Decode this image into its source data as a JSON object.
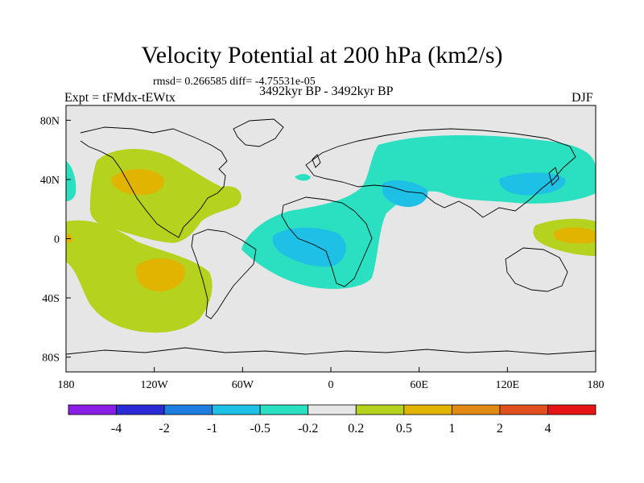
{
  "title": "Velocity Potential at 200 hPa (km2/s)",
  "stats": "rmsd= 0.266585 diff= -4.75531e-05",
  "expt": "Expt = tFMdx-tEWtx",
  "period": "3492kyr BP - 3492kyr BP",
  "season": "DJF",
  "map": {
    "background": "#e6e6e6",
    "lat_ticks": [
      {
        "label": "80N",
        "lat": 80
      },
      {
        "label": "40N",
        "lat": 40
      },
      {
        "label": "0",
        "lat": 0
      },
      {
        "label": "40S",
        "lat": -40
      },
      {
        "label": "80S",
        "lat": -80
      }
    ],
    "lon_ticks": [
      {
        "label": "180",
        "lon": -180
      },
      {
        "label": "120W",
        "lon": -120
      },
      {
        "label": "60W",
        "lon": -60
      },
      {
        "label": "0",
        "lon": 0
      },
      {
        "label": "60E",
        "lon": 60
      },
      {
        "label": "120E",
        "lon": 120
      },
      {
        "label": "180",
        "lon": 180
      }
    ]
  },
  "colorbar": {
    "colors": [
      "#8a1ee6",
      "#2b2bd6",
      "#1e7de0",
      "#1ec0e6",
      "#2be0c0",
      "#e6e6e6",
      "#b4d21e",
      "#e0b400",
      "#e08a14",
      "#e0501e",
      "#e61414"
    ],
    "labels": [
      "-4",
      "-2",
      "-1",
      "-0.5",
      "-0.2",
      "0.2",
      "0.5",
      "1",
      "2",
      "4"
    ]
  }
}
